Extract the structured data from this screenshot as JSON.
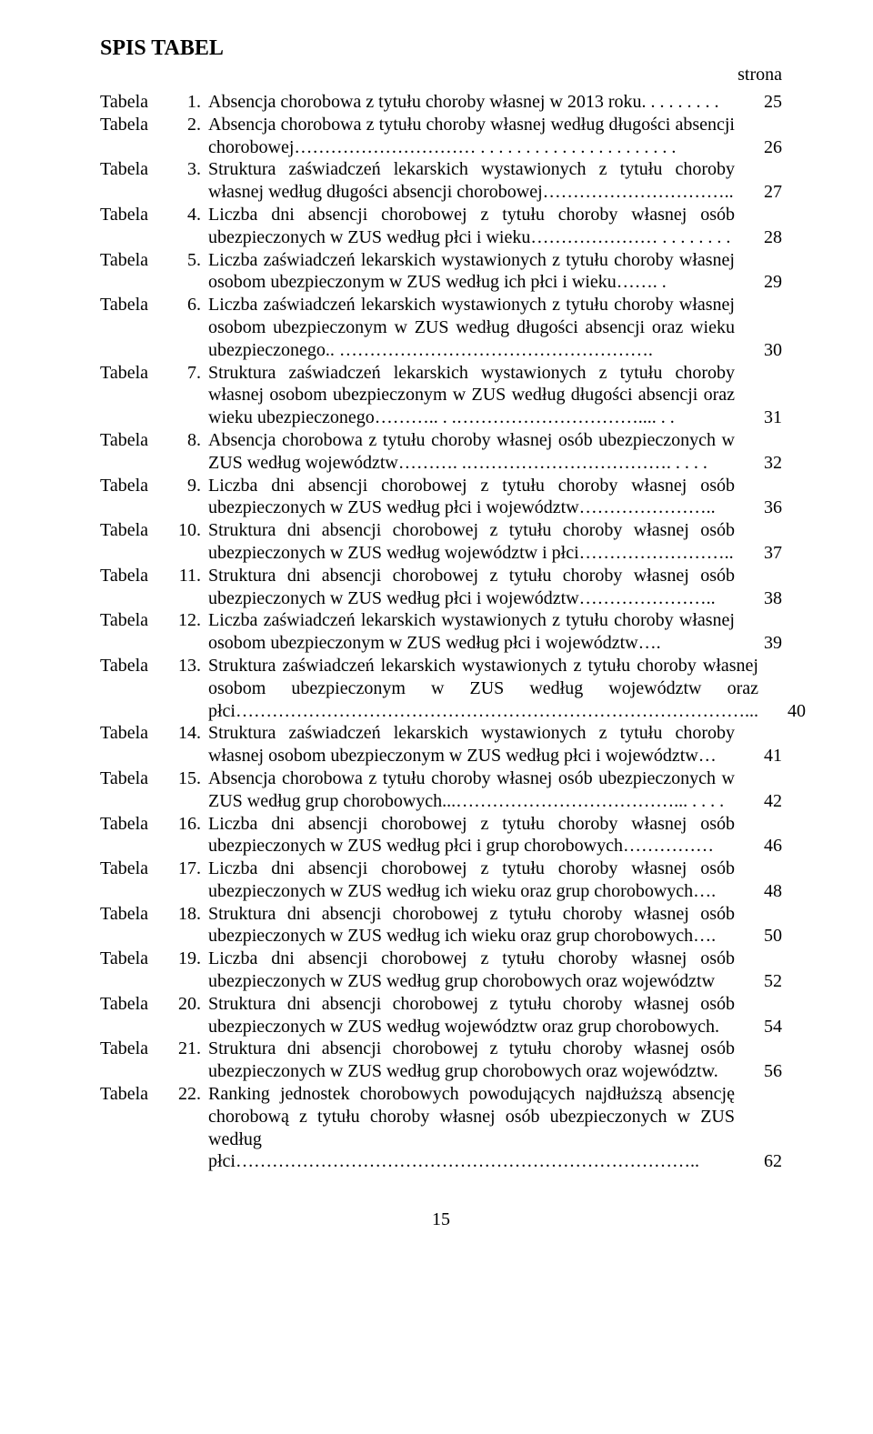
{
  "heading": "SPIS TABEL",
  "strona_label": "strona",
  "label": "Tabela",
  "page_number": "15",
  "entries": [
    {
      "num": "1.",
      "desc": "Absencja chorobowa z tytułu choroby własnej w 2013 roku. . . . . . . . .",
      "page": "25"
    },
    {
      "num": "2.",
      "desc": "Absencja chorobowa z tytułu choroby własnej według długości absencji chorobowej………………………… . . . . . . . . . . . . . . . . . . . . . .",
      "page": "26"
    },
    {
      "num": "3.",
      "desc": "Struktura zaświadczeń lekarskich wystawionych z tytułu choroby własnej według długości absencji chorobowej…………………………..",
      "page": "27"
    },
    {
      "num": "4.",
      "desc": "Liczba dni absencji chorobowej z tytułu choroby własnej osób ubezpieczonych w ZUS według płci i wieku………………… . . . . . . . .",
      "page": "28"
    },
    {
      "num": "5.",
      "desc": "Liczba zaświadczeń lekarskich wystawionych z tytułu choroby własnej osobom ubezpieczonym w ZUS według ich płci i wieku……. .",
      "page": "29"
    },
    {
      "num": "6.",
      "desc": "Liczba zaświadczeń lekarskich wystawionych z tytułu choroby własnej osobom ubezpieczonym w ZUS według długości absencji oraz wieku ubezpieczonego.. …………………………………………….",
      "page": "30"
    },
    {
      "num": "7.",
      "desc": "Struktura zaświadczeń lekarskich wystawionych z tytułu choroby własnej osobom ubezpieczonym w ZUS według długości absencji oraz wieku ubezpieczonego……….. . .………………………….... . .",
      "page": "31"
    },
    {
      "num": "8.",
      "desc": "Absencja chorobowa z tytułu choroby własnej osób ubezpieczonych w ZUS według województw………. .……………………………. . . . .",
      "page": "32"
    },
    {
      "num": "9.",
      "desc": "Liczba dni absencji chorobowej z tytułu choroby własnej osób ubezpieczonych w ZUS według  płci i województw…………………..",
      "page": "36"
    },
    {
      "num": "10.",
      "desc": "Struktura dni absencji chorobowej z tytułu choroby własnej osób ubezpieczonych w ZUS według województw i płci……………………..",
      "page": "37"
    },
    {
      "num": "11.",
      "desc": "Struktura dni absencji chorobowej z tytułu choroby własnej osób ubezpieczonych w ZUS według  płci i województw…………………..",
      "page": "38"
    },
    {
      "num": "12.",
      "desc": "Liczba zaświadczeń lekarskich wystawionych z tytułu choroby własnej osobom ubezpieczonym w ZUS według płci i województw….",
      "page": "39"
    },
    {
      "num": "13.",
      "desc": "Struktura zaświadczeń lekarskich wystawionych z tytułu choroby własnej osobom ubezpieczonym w ZUS według województw oraz płci…………………………………………………………………………...",
      "page": "40"
    },
    {
      "num": "14.",
      "desc": "Struktura zaświadczeń lekarskich wystawionych z tytułu choroby własnej osobom ubezpieczonym w ZUS według  płci i województw…",
      "page": "41"
    },
    {
      "num": "15.",
      "desc": "Absencja chorobowa z tytułu choroby własnej osób ubezpieczonych w ZUS według grup chorobowych...………………………………... . . . .",
      "page": "42"
    },
    {
      "num": "16.",
      "desc": "Liczba dni absencji chorobowej z tytułu choroby własnej osób ubezpieczonych w ZUS według  płci i grup chorobowych……………",
      "page": "46"
    },
    {
      "num": "17.",
      "desc": "Liczba dni absencji chorobowej z tytułu choroby własnej osób ubezpieczonych w ZUS według  ich wieku oraz grup chorobowych….",
      "page": "48"
    },
    {
      "num": "18.",
      "desc": "Struktura dni absencji chorobowej z tytułu choroby własnej osób ubezpieczonych w ZUS według  ich wieku oraz grup chorobowych….",
      "page": "50"
    },
    {
      "num": "19.",
      "desc": "Liczba dni absencji chorobowej z tytułu choroby własnej osób ubezpieczonych w ZUS według  grup chorobowych oraz województw",
      "page": "52"
    },
    {
      "num": "20.",
      "desc": "Struktura dni absencji chorobowej z tytułu choroby własnej osób ubezpieczonych w ZUS według województw oraz grup chorobowych.",
      "page": "54"
    },
    {
      "num": "21.",
      "desc": "Struktura dni absencji chorobowej z tytułu choroby własnej osób ubezpieczonych w ZUS według grup chorobowych oraz województw.",
      "page": "56"
    },
    {
      "num": "22.",
      "desc": "Ranking jednostek chorobowych powodujących najdłuższą absencję chorobową z tytułu choroby własnej osób ubezpieczonych w ZUS według płci…………………………………………………………………..",
      "page": "62"
    }
  ]
}
